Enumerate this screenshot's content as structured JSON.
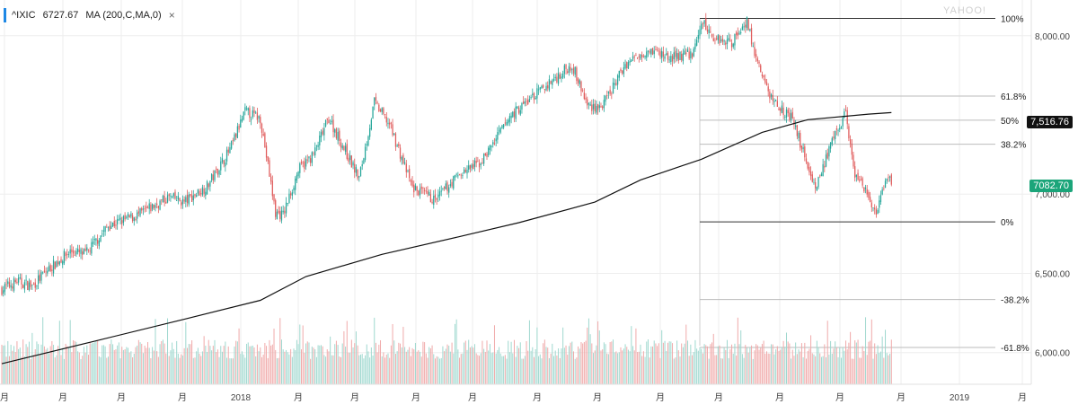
{
  "legend": {
    "symbol": "^IXIC",
    "value": "6727.67",
    "indicator": "MA (200,C,MA,0)",
    "close_symbol": "×"
  },
  "watermark": "YAHOO!",
  "tags": {
    "ma_value": "7,516.76",
    "last_value": "7082.70"
  },
  "colors": {
    "up": "#26a69a",
    "down": "#e05c5c",
    "ma": "#111111",
    "accent": "#1e88e5",
    "grid": "#eeeeee"
  },
  "chart_data": {
    "type": "candlestick",
    "y_axis": {
      "range": [
        5800,
        8180
      ],
      "ticks": [
        6000,
        6500,
        7000,
        8000
      ],
      "tick_labels": [
        "6,000.00",
        "6,500.00",
        "7,000.00",
        "8,000.00"
      ]
    },
    "x_axis": {
      "tick_labels": [
        "月",
        "月",
        "月",
        "月",
        "2018",
        "月",
        "月",
        "月",
        "月",
        "月",
        "月",
        "月",
        "月",
        "月",
        "月",
        "月",
        "2019",
        "月"
      ]
    },
    "fibonacci": [
      {
        "label": "100%",
        "value": 8109
      },
      {
        "label": "61.8%",
        "value": 7619
      },
      {
        "label": "50%",
        "value": 7467
      },
      {
        "label": "38.2%",
        "value": 7315
      },
      {
        "label": "0%",
        "value": 6825
      },
      {
        "label": "-38.2%",
        "value": 6335
      },
      {
        "label": "-61.8%",
        "value": 6032
      }
    ],
    "close_anchors": [
      [
        0,
        6400
      ],
      [
        10,
        6450
      ],
      [
        20,
        6420
      ],
      [
        30,
        6520
      ],
      [
        45,
        6640
      ],
      [
        55,
        6620
      ],
      [
        70,
        6800
      ],
      [
        90,
        6870
      ],
      [
        110,
        6980
      ],
      [
        120,
        6950
      ],
      [
        135,
        7050
      ],
      [
        150,
        7280
      ],
      [
        160,
        7520
      ],
      [
        170,
        7480
      ],
      [
        180,
        6880
      ],
      [
        185,
        6870
      ],
      [
        195,
        7150
      ],
      [
        205,
        7250
      ],
      [
        215,
        7480
      ],
      [
        235,
        7100
      ],
      [
        245,
        7580
      ],
      [
        255,
        7440
      ],
      [
        270,
        7040
      ],
      [
        285,
        6960
      ],
      [
        300,
        7120
      ],
      [
        315,
        7200
      ],
      [
        335,
        7500
      ],
      [
        355,
        7660
      ],
      [
        375,
        7820
      ],
      [
        385,
        7560
      ],
      [
        395,
        7550
      ],
      [
        410,
        7820
      ],
      [
        425,
        7920
      ],
      [
        440,
        7860
      ],
      [
        455,
        7890
      ],
      [
        460,
        8090
      ],
      [
        468,
        7990
      ],
      [
        480,
        7960
      ],
      [
        490,
        8100
      ],
      [
        495,
        7880
      ],
      [
        505,
        7620
      ],
      [
        520,
        7470
      ],
      [
        535,
        7040
      ],
      [
        545,
        7300
      ],
      [
        555,
        7520
      ],
      [
        560,
        7150
      ],
      [
        570,
        6980
      ],
      [
        575,
        6870
      ],
      [
        582,
        7090
      ],
      [
        585,
        7080
      ]
    ],
    "candles_note": "daily candles with volume bars below",
    "volume": {
      "style": "bars",
      "threshold_line": true
    },
    "ma200": {
      "name": "MA (200,C,MA,0)",
      "points": [
        [
          0,
          5930
        ],
        [
          60,
          6070
        ],
        [
          120,
          6210
        ],
        [
          170,
          6330
        ],
        [
          200,
          6480
        ],
        [
          250,
          6620
        ],
        [
          300,
          6730
        ],
        [
          340,
          6820
        ],
        [
          390,
          6950
        ],
        [
          420,
          7090
        ],
        [
          460,
          7220
        ],
        [
          500,
          7390
        ],
        [
          530,
          7470
        ],
        [
          570,
          7505
        ],
        [
          585,
          7515
        ]
      ]
    }
  }
}
